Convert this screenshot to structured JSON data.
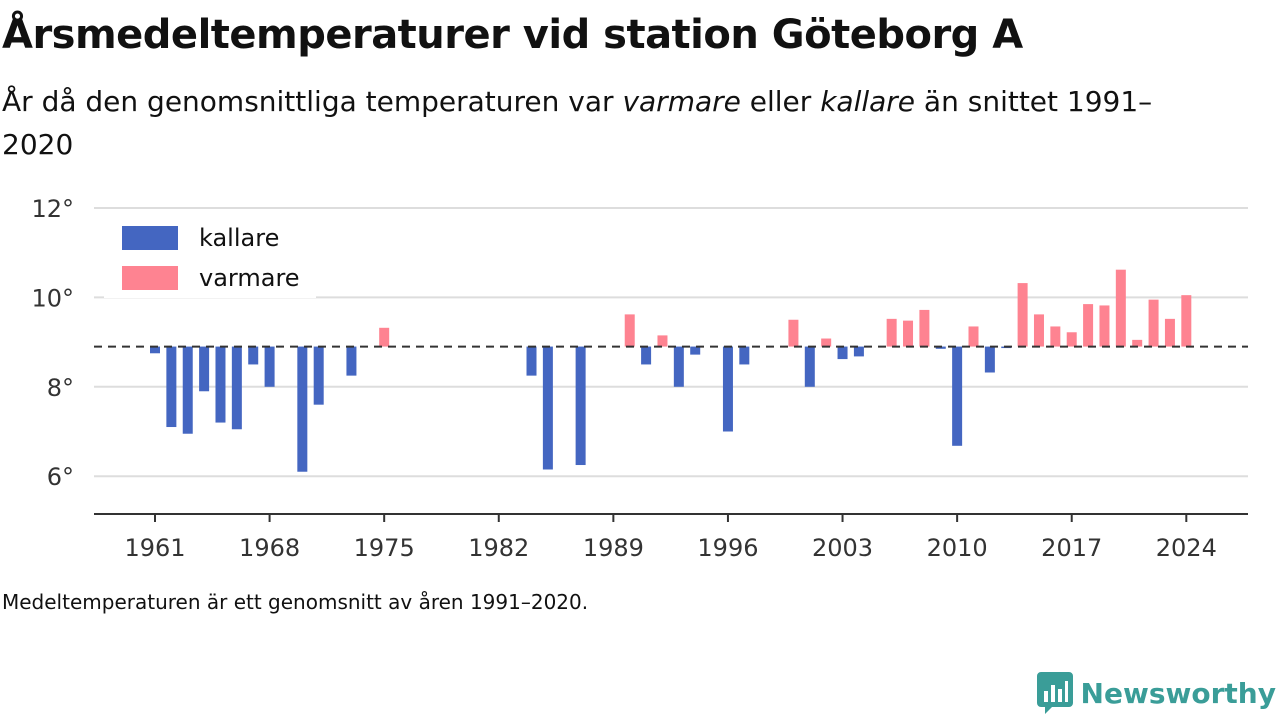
{
  "header": {
    "title": "Årsmedeltemperaturer vid station Göteborg A",
    "subtitle_part1": "År då den genomsnittliga temperaturen var ",
    "subtitle_em1": "varmare",
    "subtitle_part2": " eller ",
    "subtitle_em2": "kallare",
    "subtitle_part3": " än snittet 1991–2020"
  },
  "footer": {
    "caption": "Medeltemperaturen är ett genomsnitt av åren 1991–2020.",
    "brand": "Newsworthy"
  },
  "colors": {
    "colder": "#4466c1",
    "warmer": "#fe8391",
    "brand": "#3a9d98",
    "grid": "#dddddd",
    "reference_line": "#333333"
  },
  "chart_data": {
    "type": "bar",
    "x_ticks": [
      "1961",
      "1968",
      "1975",
      "1982",
      "1989",
      "1996",
      "2003",
      "2010",
      "2017",
      "2024"
    ],
    "y_ticks": [
      "6°",
      "8°",
      "10°",
      "12°"
    ],
    "ylim": [
      5.2,
      12
    ],
    "xlim": [
      1956.5,
      2027.5
    ],
    "baseline": 8.9,
    "grid": "horizontal",
    "legend_position": "top-left",
    "series": [
      {
        "name": "kallare",
        "color": "#4466c1",
        "points": [
          [
            1961,
            8.75
          ],
          [
            1962,
            7.1
          ],
          [
            1963,
            6.95
          ],
          [
            1964,
            7.9
          ],
          [
            1965,
            7.2
          ],
          [
            1966,
            7.05
          ],
          [
            1967,
            8.5
          ],
          [
            1968,
            8.0
          ],
          [
            1970,
            6.1
          ],
          [
            1971,
            7.6
          ],
          [
            1973,
            8.25
          ],
          [
            1984,
            8.25
          ],
          [
            1985,
            6.15
          ],
          [
            1987,
            6.25
          ],
          [
            1991,
            8.5
          ],
          [
            1993,
            8.0
          ],
          [
            1994,
            8.72
          ],
          [
            1996,
            7.0
          ],
          [
            1997,
            8.5
          ],
          [
            2001,
            8.0
          ],
          [
            2003,
            8.62
          ],
          [
            2004,
            8.68
          ],
          [
            2009,
            8.85
          ],
          [
            2010,
            6.68
          ],
          [
            2012,
            8.32
          ],
          [
            2013,
            8.87
          ]
        ]
      },
      {
        "name": "varmare",
        "color": "#fe8391",
        "points": [
          [
            1975,
            9.32
          ],
          [
            1990,
            9.62
          ],
          [
            1992,
            9.15
          ],
          [
            2000,
            9.5
          ],
          [
            2002,
            9.08
          ],
          [
            2006,
            9.52
          ],
          [
            2007,
            9.48
          ],
          [
            2008,
            9.72
          ],
          [
            2011,
            9.35
          ],
          [
            2014,
            10.32
          ],
          [
            2015,
            9.62
          ],
          [
            2016,
            9.35
          ],
          [
            2017,
            9.22
          ],
          [
            2018,
            9.85
          ],
          [
            2019,
            9.82
          ],
          [
            2020,
            10.62
          ],
          [
            2021,
            9.05
          ],
          [
            2022,
            9.95
          ],
          [
            2023,
            9.52
          ],
          [
            2024,
            10.05
          ]
        ]
      }
    ]
  }
}
